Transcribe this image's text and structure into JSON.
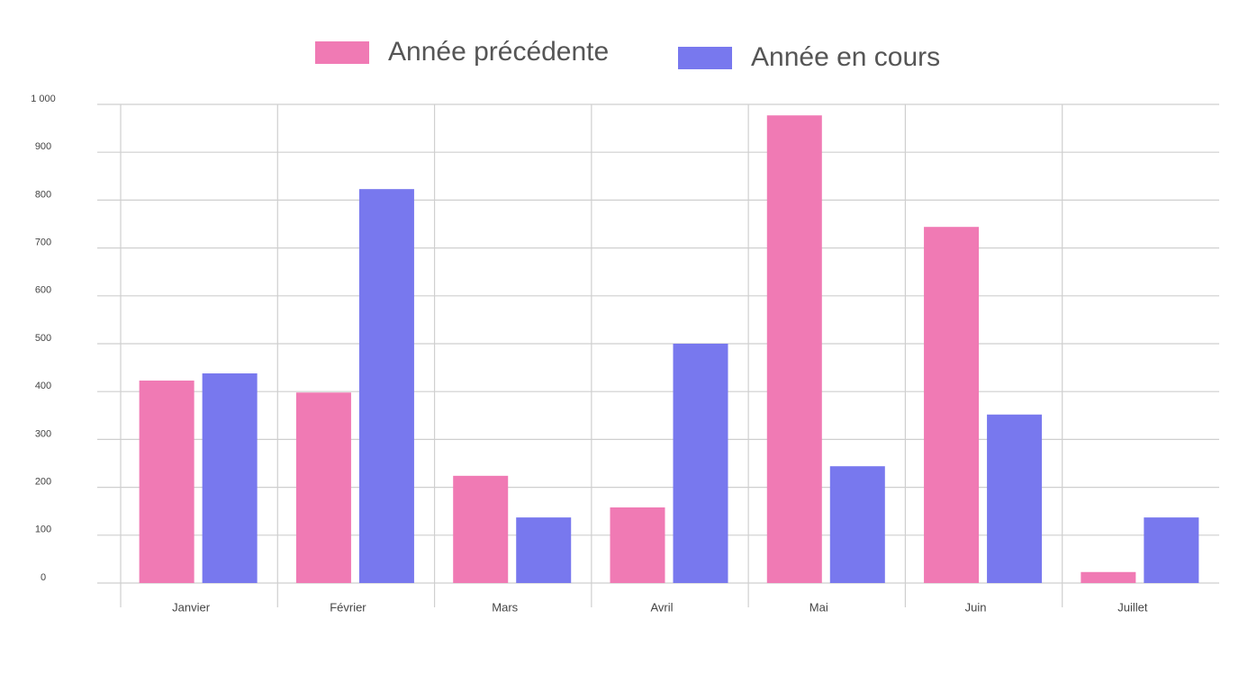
{
  "chart_data": {
    "type": "bar",
    "categories": [
      "Janvier",
      "Février",
      "Mars",
      "Avril",
      "Mai",
      "Juin",
      "Juillet"
    ],
    "series": [
      {
        "name": "Année précédente",
        "color": "#f07ab4",
        "values": [
          423,
          398,
          224,
          158,
          977,
          744,
          23
        ]
      },
      {
        "name": "Année en cours",
        "color": "#7878ee",
        "values": [
          438,
          823,
          137,
          500,
          244,
          352,
          137
        ]
      }
    ],
    "ylim": [
      0,
      1000
    ],
    "yticks": [
      0,
      100,
      200,
      300,
      400,
      500,
      600,
      700,
      800,
      900,
      {
        "value": 1000,
        "label": "1 000"
      }
    ],
    "grid": true,
    "legend": "top"
  }
}
